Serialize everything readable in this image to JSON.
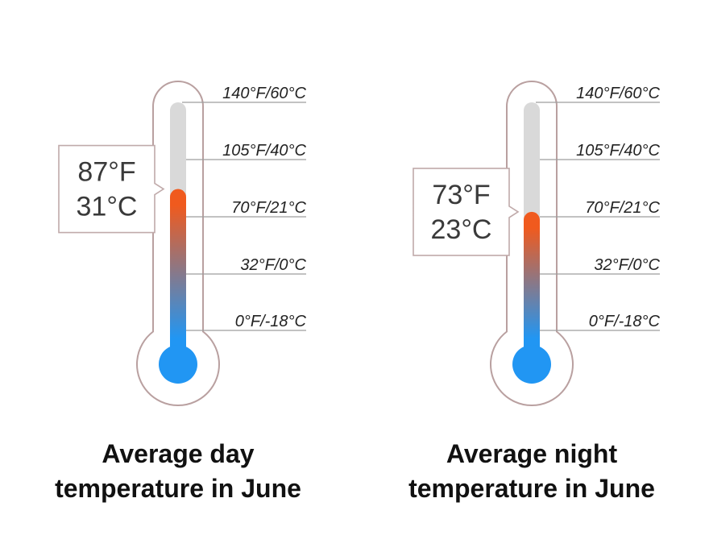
{
  "chart_data": [
    {
      "type": "thermometer",
      "caption_lines": [
        "Average day",
        "temperature in June"
      ],
      "value_f": 87,
      "value_c": 31,
      "value_labels": [
        "87°F",
        "31°C"
      ],
      "scale": [
        {
          "f": 140,
          "c": 60,
          "label": "140°F/60°C"
        },
        {
          "f": 105,
          "c": 40,
          "label": "105°F/40°C"
        },
        {
          "f": 70,
          "c": 21,
          "label": "70°F/21°C"
        },
        {
          "f": 32,
          "c": 0,
          "label": "32°F/0°C"
        },
        {
          "f": 0,
          "c": -18,
          "label": "0°F/-18°C"
        }
      ],
      "fill_gradient": [
        "#f05a1e",
        "#2196f3"
      ]
    },
    {
      "type": "thermometer",
      "caption_lines": [
        "Average night",
        "temperature in June"
      ],
      "value_f": 73,
      "value_c": 23,
      "value_labels": [
        "73°F",
        "23°C"
      ],
      "scale": [
        {
          "f": 140,
          "c": 60,
          "label": "140°F/60°C"
        },
        {
          "f": 105,
          "c": 40,
          "label": "105°F/40°C"
        },
        {
          "f": 70,
          "c": 21,
          "label": "70°F/21°C"
        },
        {
          "f": 32,
          "c": 0,
          "label": "32°F/0°C"
        },
        {
          "f": 0,
          "c": -18,
          "label": "0°F/-18°C"
        }
      ],
      "fill_gradient": [
        "#f05a1e",
        "#2196f3"
      ]
    }
  ],
  "colors": {
    "outline": "#b9a0a0",
    "empty_tube": "#d9d9d9",
    "grid_line": "#9e9e9e",
    "bulb": "#2196f3",
    "callout_border": "#c0aaaa"
  }
}
